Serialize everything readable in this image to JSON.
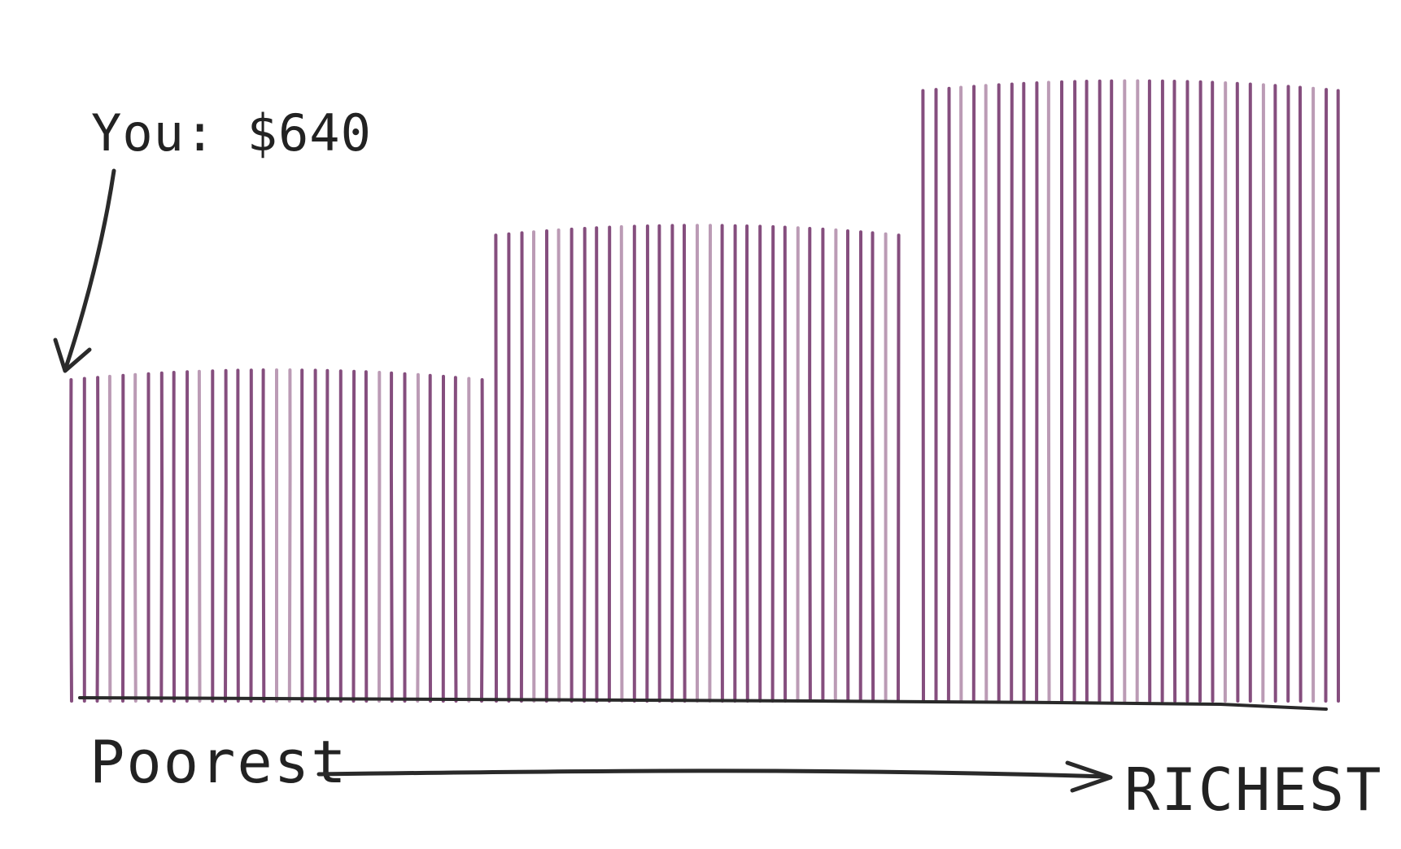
{
  "chart_data": {
    "type": "bar",
    "title": "",
    "xlabel": "",
    "ylabel": "",
    "groups": [
      {
        "bars": 33,
        "value": 1
      },
      {
        "bars": 33,
        "value": 1.45
      },
      {
        "bars": 34,
        "value": 1.9
      }
    ],
    "annotation": {
      "text": "You: $640",
      "target_bar_index": 0
    },
    "axis_labels": {
      "left": "Poorest",
      "right": "RICHEST"
    },
    "colors": {
      "bar": "#7b3f73",
      "bar_light": "#a47a9c",
      "ink": "#2a2a2a"
    }
  }
}
